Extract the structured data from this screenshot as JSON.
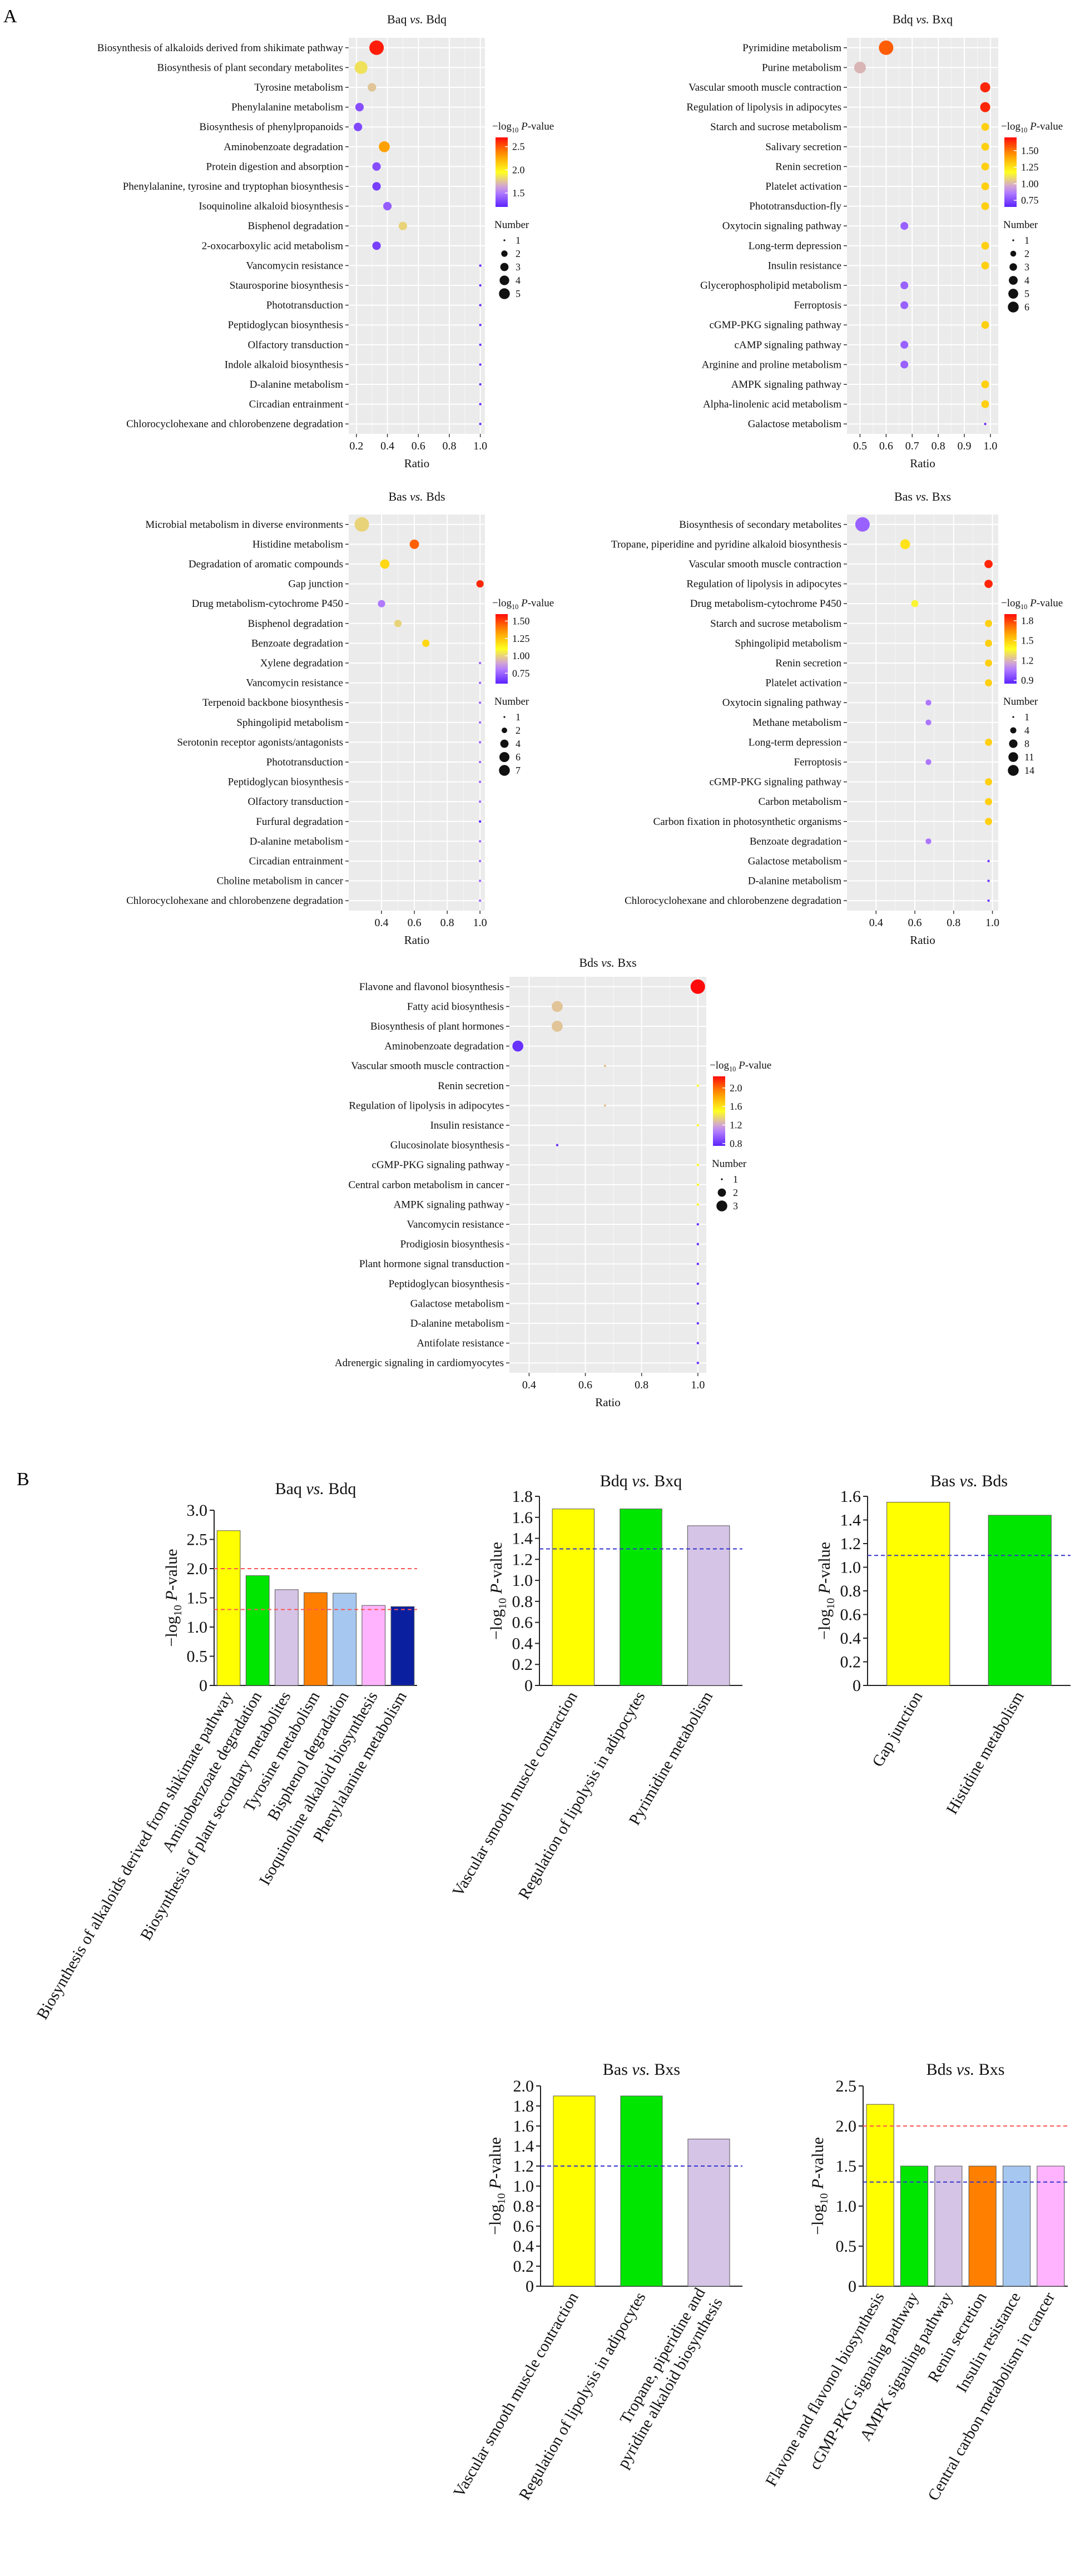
{
  "figure": {
    "panel_a_label": "A",
    "panel_b_label": "B"
  },
  "chart_data": [
    {
      "type": "scatter",
      "panel": "A",
      "title_left": "Baq ",
      "title_vs": "vs.",
      "title_right": " Bdq",
      "xlabel": "Ratio",
      "xlim": [
        0.15,
        1.03
      ],
      "xticks": [
        "0.2",
        "0.4",
        "0.6",
        "0.8",
        "1.0"
      ],
      "xtick_values": [
        0.2,
        0.4,
        0.6,
        0.8,
        1.0
      ],
      "color_legend_title": "−log10 P-value",
      "color_range": [
        1.2,
        2.7
      ],
      "color_ticks": [
        "2.5",
        "2.0",
        "1.5"
      ],
      "color_tick_values": [
        2.5,
        2.0,
        1.5
      ],
      "size_legend_title": "Number",
      "size_legend": [
        "1",
        "2",
        "3",
        "4",
        "5"
      ],
      "size_legend_values": [
        1,
        2,
        3,
        4,
        5
      ],
      "size_max": 5,
      "terms": [
        "Biosynthesis of alkaloids derived from shikimate pathway",
        "Biosynthesis of plant secondary metabolites",
        "Tyrosine metabolism",
        "Phenylalanine metabolism",
        "Biosynthesis of phenylpropanoids",
        "Aminobenzoate degradation",
        "Protein digestion and absorption",
        "Phenylalanine, tyrosine and tryptophan biosynthesis",
        "Isoquinoline alkaloid biosynthesis",
        "Bisphenol degradation",
        "2-oxocarboxylic acid metabolism",
        "Vancomycin resistance",
        "Staurosporine biosynthesis",
        "Phototransduction",
        "Peptidoglycan biosynthesis",
        "Olfactory transduction",
        "Indole alkaloid biosynthesis",
        "D-alanine metabolism",
        "Circadian entrainment",
        "Chlorocyclohexane and chlorobenzene degradation"
      ],
      "ratio": [
        0.33,
        0.23,
        0.3,
        0.22,
        0.21,
        0.38,
        0.33,
        0.33,
        0.4,
        0.5,
        0.33,
        1.0,
        1.0,
        1.0,
        1.0,
        1.0,
        1.0,
        1.0,
        1.0,
        1.0
      ],
      "neglogp": [
        2.65,
        1.85,
        1.75,
        1.35,
        1.33,
        2.3,
        1.35,
        1.3,
        1.4,
        1.8,
        1.3,
        1.25,
        1.25,
        1.25,
        1.25,
        1.25,
        1.25,
        1.25,
        1.25,
        1.25
      ],
      "number": [
        5,
        4,
        2,
        2,
        2,
        3,
        2,
        2,
        2,
        2,
        2,
        1,
        1,
        1,
        1,
        1,
        1,
        1,
        1,
        1
      ]
    },
    {
      "type": "scatter",
      "panel": "A",
      "title_left": "Bdq ",
      "title_vs": "vs.",
      "title_right": " Bxq",
      "xlabel": "Ratio",
      "xlim": [
        0.45,
        1.03
      ],
      "xticks": [
        "0.5",
        "0.6",
        "0.7",
        "0.8",
        "0.9",
        "1.0"
      ],
      "xtick_values": [
        0.5,
        0.6,
        0.7,
        0.8,
        0.9,
        1.0
      ],
      "color_legend_title": "−log10 P-value",
      "color_range": [
        0.65,
        1.7
      ],
      "color_ticks": [
        "1.50",
        "1.25",
        "1.00",
        "0.75"
      ],
      "color_tick_values": [
        1.5,
        1.25,
        1.0,
        0.75
      ],
      "size_legend_title": "Number",
      "size_legend": [
        "1",
        "2",
        "3",
        "4",
        "5",
        "6"
      ],
      "size_legend_values": [
        1,
        2,
        3,
        4,
        5,
        6
      ],
      "size_max": 6,
      "terms": [
        "Pyrimidine metabolism",
        "Purine metabolism",
        "Vascular smooth muscle contraction",
        "Regulation of lipolysis in adipocytes",
        "Starch and sucrose metabolism",
        "Salivary secretion",
        "Renin secretion",
        "Platelet activation",
        "Phototransduction-fly",
        "Oxytocin signaling pathway",
        "Long-term depression",
        "Insulin resistance",
        "Glycerophospholipid metabolism",
        "Ferroptosis",
        "cGMP-PKG signaling pathway",
        "cAMP signaling pathway",
        "Arginine and proline metabolism",
        "AMPK signaling pathway",
        "Alpha-linolenic acid metabolism",
        "Galactose metabolism"
      ],
      "ratio": [
        0.6,
        0.5,
        0.98,
        0.98,
        0.98,
        0.98,
        0.98,
        0.98,
        0.98,
        0.67,
        0.98,
        0.98,
        0.67,
        0.67,
        0.98,
        0.67,
        0.67,
        0.98,
        0.98,
        0.98
      ],
      "neglogp": [
        1.55,
        1.0,
        1.65,
        1.65,
        1.3,
        1.3,
        1.3,
        1.3,
        1.3,
        0.8,
        1.3,
        1.3,
        0.8,
        0.8,
        1.3,
        0.8,
        0.8,
        1.3,
        1.3,
        0.7
      ],
      "number": [
        6,
        4,
        3,
        3,
        2,
        2,
        2,
        2,
        2,
        2,
        2,
        2,
        2,
        2,
        2,
        2,
        2,
        2,
        2,
        1
      ]
    },
    {
      "type": "scatter",
      "panel": "A",
      "title_left": "Bas ",
      "title_vs": "vs.",
      "title_right": " Bds",
      "xlabel": "Ratio",
      "xlim": [
        0.2,
        1.03
      ],
      "xticks": [
        "0.4",
        "0.6",
        "0.8",
        "1.0"
      ],
      "xtick_values": [
        0.4,
        0.6,
        0.8,
        1.0
      ],
      "color_legend_title": "−log10 P-value",
      "color_range": [
        0.6,
        1.6
      ],
      "color_ticks": [
        "1.50",
        "1.25",
        "1.00",
        "0.75"
      ],
      "color_tick_values": [
        1.5,
        1.25,
        1.0,
        0.75
      ],
      "size_legend_title": "Number",
      "size_legend": [
        "1",
        "2",
        "4",
        "6",
        "7"
      ],
      "size_legend_values": [
        1,
        2,
        4,
        6,
        7
      ],
      "size_max": 7,
      "terms": [
        "Microbial metabolism in diverse environments",
        "Histidine metabolism",
        "Degradation of aromatic compounds",
        "Gap junction",
        "Drug metabolism-cytochrome P450",
        "Bisphenol degradation",
        "Benzoate degradation",
        "Xylene degradation",
        "Vancomycin resistance",
        "Terpenoid backbone biosynthesis",
        "Sphingolipid metabolism",
        "Serotonin receptor agonists/antagonists",
        "Phototransduction",
        "Peptidoglycan biosynthesis",
        "Olfactory transduction",
        "Furfural degradation",
        "D-alanine metabolism",
        "Circadian entrainment",
        "Choline metabolism in cancer",
        "Chlorocyclohexane and chlorobenzene degradation"
      ],
      "ratio": [
        0.28,
        0.6,
        0.42,
        1.0,
        0.4,
        0.5,
        0.67,
        1.0,
        1.0,
        1.0,
        1.0,
        1.0,
        1.0,
        1.0,
        1.0,
        1.0,
        1.0,
        1.0,
        1.0,
        1.0
      ],
      "neglogp": [
        1.0,
        1.45,
        1.2,
        1.55,
        0.8,
        1.0,
        1.2,
        0.75,
        0.75,
        0.75,
        0.75,
        0.75,
        0.75,
        0.75,
        0.75,
        0.6,
        0.75,
        0.75,
        0.75,
        0.75
      ],
      "number": [
        7,
        3,
        3,
        2,
        2,
        2,
        2,
        1,
        1,
        1,
        1,
        1,
        1,
        1,
        1,
        1,
        1,
        1,
        1,
        1
      ]
    },
    {
      "type": "scatter",
      "panel": "A",
      "title_left": "Bas ",
      "title_vs": "vs.",
      "title_right": " Bxs",
      "xlabel": "Ratio",
      "xlim": [
        0.25,
        1.03
      ],
      "xticks": [
        "0.4",
        "0.6",
        "0.8",
        "1.0"
      ],
      "xtick_values": [
        0.4,
        0.6,
        0.8,
        1.0
      ],
      "color_legend_title": "−log10 P-value",
      "color_range": [
        0.85,
        1.9
      ],
      "color_ticks": [
        "1.8",
        "1.5",
        "1.2",
        "0.9"
      ],
      "color_tick_values": [
        1.8,
        1.5,
        1.2,
        0.9
      ],
      "size_legend_title": "Number",
      "size_legend": [
        "1",
        "4",
        "8",
        "11",
        "14"
      ],
      "size_legend_values": [
        1,
        4,
        8,
        11,
        14
      ],
      "size_max": 14,
      "terms": [
        "Biosynthesis of secondary metabolites",
        "Tropane, piperidine and pyridine alkaloid biosynthesis",
        "Vascular smooth muscle contraction",
        "Regulation of lipolysis in adipocytes",
        "Drug metabolism-cytochrome P450",
        "Starch and sucrose metabolism",
        "Sphingolipid metabolism",
        "Renin secretion",
        "Platelet activation",
        "Oxytocin signaling pathway",
        "Methane metabolism",
        "Long-term depression",
        "Ferroptosis",
        "cGMP-PKG signaling pathway",
        "Carbon metabolism",
        "Carbon fixation in photosynthetic organisms",
        "Benzoate degradation",
        "Galactose metabolism",
        "D-alanine metabolism",
        "Chlorocyclohexane and chlorobenzene degradation"
      ],
      "ratio": [
        0.33,
        0.55,
        0.98,
        0.98,
        0.6,
        0.98,
        0.98,
        0.98,
        0.98,
        0.67,
        0.67,
        0.98,
        0.67,
        0.98,
        0.98,
        0.98,
        0.67,
        0.98,
        0.98,
        0.98
      ],
      "neglogp": [
        1.0,
        1.45,
        1.85,
        1.85,
        1.35,
        1.5,
        1.5,
        1.5,
        1.5,
        1.05,
        1.05,
        1.5,
        1.05,
        1.5,
        1.5,
        1.5,
        1.05,
        0.9,
        0.9,
        0.9
      ],
      "number": [
        14,
        6,
        4,
        4,
        3,
        3,
        3,
        3,
        3,
        2,
        2,
        3,
        2,
        3,
        3,
        3,
        2,
        1,
        1,
        1
      ]
    },
    {
      "type": "scatter",
      "panel": "A",
      "title_left": "Bds ",
      "title_vs": "vs.",
      "title_right": " Bxs",
      "xlabel": "Ratio",
      "xlim": [
        0.33,
        1.03
      ],
      "xticks": [
        "0.4",
        "0.6",
        "0.8",
        "1.0"
      ],
      "xtick_values": [
        0.4,
        0.6,
        0.8,
        1.0
      ],
      "color_legend_title": "−log10 P-value",
      "color_range": [
        0.75,
        2.25
      ],
      "color_ticks": [
        "2.0",
        "1.6",
        "1.2",
        "0.8"
      ],
      "color_tick_values": [
        2.0,
        1.6,
        1.2,
        0.8
      ],
      "size_legend_title": "Number",
      "size_legend": [
        "1",
        "2",
        "3"
      ],
      "size_legend_values": [
        1,
        2,
        3
      ],
      "size_max": 3,
      "terms": [
        "Flavone and flavonol biosynthesis",
        "Fatty acid biosynthesis",
        "Biosynthesis of plant hormones",
        "Aminobenzoate degradation",
        "Vascular smooth muscle contraction",
        "Renin secretion",
        "Regulation of lipolysis in adipocytes",
        "Insulin resistance",
        "Glucosinolate biosynthesis",
        "cGMP-PKG signaling pathway",
        "Central carbon metabolism in cancer",
        "AMPK signaling pathway",
        "Vancomycin resistance",
        "Prodigiosin biosynthesis",
        "Plant hormone signal transduction",
        "Peptidoglycan biosynthesis",
        "Galactose metabolism",
        "D-alanine metabolism",
        "Antifolate resistance",
        "Adrenergic signaling in cardiomyocytes"
      ],
      "ratio": [
        1.0,
        0.5,
        0.5,
        0.36,
        0.67,
        1.0,
        0.67,
        1.0,
        0.5,
        1.0,
        1.0,
        1.0,
        1.0,
        1.0,
        1.0,
        1.0,
        1.0,
        1.0,
        1.0,
        1.0
      ],
      "neglogp": [
        2.25,
        1.3,
        1.3,
        0.8,
        1.3,
        1.5,
        1.3,
        1.5,
        0.8,
        1.5,
        1.5,
        1.5,
        0.8,
        0.8,
        0.8,
        0.8,
        0.8,
        0.8,
        0.8,
        0.8
      ],
      "number": [
        3,
        2,
        2,
        2,
        1,
        1,
        1,
        1,
        1,
        1,
        1,
        1,
        1,
        1,
        1,
        1,
        1,
        1,
        1,
        1
      ]
    },
    {
      "type": "bar",
      "panel": "B",
      "title_left": "Baq ",
      "title_vs": "vs.",
      "title_right": " Bdq",
      "ylabel": "−log10 P-value",
      "ylim": [
        0,
        3.0
      ],
      "yticks": [
        "0",
        "0.5",
        "1.0",
        "1.5",
        "2.0",
        "2.5",
        "3.0"
      ],
      "ytick_values": [
        0,
        0.5,
        1.0,
        1.5,
        2.0,
        2.5,
        3.0
      ],
      "categories": [
        "Biosynthesis of alkaloids derived from shikimate pathway",
        "Aminobenzoate degradation",
        "Biosynthesis of plant secondary metabolites",
        "Tyrosine metabolism",
        "Bisphenol degradation",
        "Isoquinoline alkaloid biosynthesis",
        "Phenylalanine metabolism"
      ],
      "values": [
        2.65,
        1.88,
        1.64,
        1.59,
        1.58,
        1.37,
        1.35
      ],
      "colors": [
        "#ffff00",
        "#00e600",
        "#d5c4e6",
        "#ff8000",
        "#a6c8f0",
        "#ffb3ff",
        "#0a1fa0"
      ],
      "ref_lines": [
        2.0,
        1.3
      ],
      "ref_colors": [
        "#ff5555",
        "#ff5555"
      ]
    },
    {
      "type": "bar",
      "panel": "B",
      "title_left": "Bdq ",
      "title_vs": "vs.",
      "title_right": " Bxq",
      "ylabel": "−log10 P-value",
      "ylim": [
        0,
        1.8
      ],
      "yticks": [
        "0",
        "0.2",
        "0.4",
        "0.6",
        "0.8",
        "1.0",
        "1.2",
        "1.4",
        "1.6",
        "1.8"
      ],
      "ytick_values": [
        0,
        0.2,
        0.4,
        0.6,
        0.8,
        1.0,
        1.2,
        1.4,
        1.6,
        1.8
      ],
      "categories": [
        "Vascular smooth muscle contraction",
        "Regulation of lipolysis in adipocytes",
        "Pyrimidine metabolism"
      ],
      "values": [
        1.68,
        1.68,
        1.52
      ],
      "colors": [
        "#ffff00",
        "#00e600",
        "#d5c4e6"
      ],
      "ref_lines": [
        1.3
      ],
      "ref_colors": [
        "#3333cc"
      ]
    },
    {
      "type": "bar",
      "panel": "B",
      "title_left": "Bas ",
      "title_vs": "vs.",
      "title_right": " Bds",
      "ylabel": "−log10 P-value",
      "ylim": [
        0,
        1.6
      ],
      "yticks": [
        "0",
        "0.2",
        "0.4",
        "0.6",
        "0.8",
        "1.0",
        "1.2",
        "1.4",
        "1.6"
      ],
      "ytick_values": [
        0,
        0.2,
        0.4,
        0.6,
        0.8,
        1.0,
        1.2,
        1.4,
        1.6
      ],
      "categories": [
        "Gap junction",
        "Histidine metabolism"
      ],
      "values": [
        1.55,
        1.44
      ],
      "colors": [
        "#ffff00",
        "#00e600"
      ],
      "ref_lines": [
        1.1
      ],
      "ref_colors": [
        "#3333cc"
      ]
    },
    {
      "type": "bar",
      "panel": "B",
      "title_left": "Bas ",
      "title_vs": "vs.",
      "title_right": " Bxs",
      "ylabel": "−log10 P-value",
      "ylim": [
        0,
        2.0
      ],
      "yticks": [
        "0",
        "0.2",
        "0.4",
        "0.6",
        "0.8",
        "1.0",
        "1.2",
        "1.4",
        "1.6",
        "1.8",
        "2.0"
      ],
      "ytick_values": [
        0,
        0.2,
        0.4,
        0.6,
        0.8,
        1.0,
        1.2,
        1.4,
        1.6,
        1.8,
        2.0
      ],
      "categories": [
        "Vascular smooth muscle contraction",
        "Regulation of lipolysis in adipocytes",
        "Tropane, piperidine and pyridine alkaloid biosynthesis"
      ],
      "values": [
        1.9,
        1.9,
        1.47
      ],
      "colors": [
        "#ffff00",
        "#00e600",
        "#d5c4e6"
      ],
      "ref_lines": [
        1.2
      ],
      "ref_colors": [
        "#3333cc"
      ]
    },
    {
      "type": "bar",
      "panel": "B",
      "title_left": "Bds ",
      "title_vs": "vs.",
      "title_right": " Bxs",
      "ylabel": "−log10 P-value",
      "ylim": [
        0,
        2.5
      ],
      "yticks": [
        "0",
        "0.5",
        "1.0",
        "1.5",
        "2.0",
        "2.5"
      ],
      "ytick_values": [
        0,
        0.5,
        1.0,
        1.5,
        2.0,
        2.5
      ],
      "categories": [
        "Flavone and flavonol biosynthesis",
        "cGMP-PKG signaling pathway",
        "AMPK signaling pathway",
        "Renin secretion",
        "Insulin resistance",
        "Central carbon metabolism in cancer"
      ],
      "values": [
        2.27,
        1.5,
        1.5,
        1.5,
        1.5,
        1.5
      ],
      "colors": [
        "#ffff00",
        "#00e600",
        "#d5c4e6",
        "#ff8000",
        "#a6c8f0",
        "#ffb3ff"
      ],
      "ref_lines": [
        2.0,
        1.3
      ],
      "ref_colors": [
        "#ff5555",
        "#3333cc"
      ]
    }
  ]
}
